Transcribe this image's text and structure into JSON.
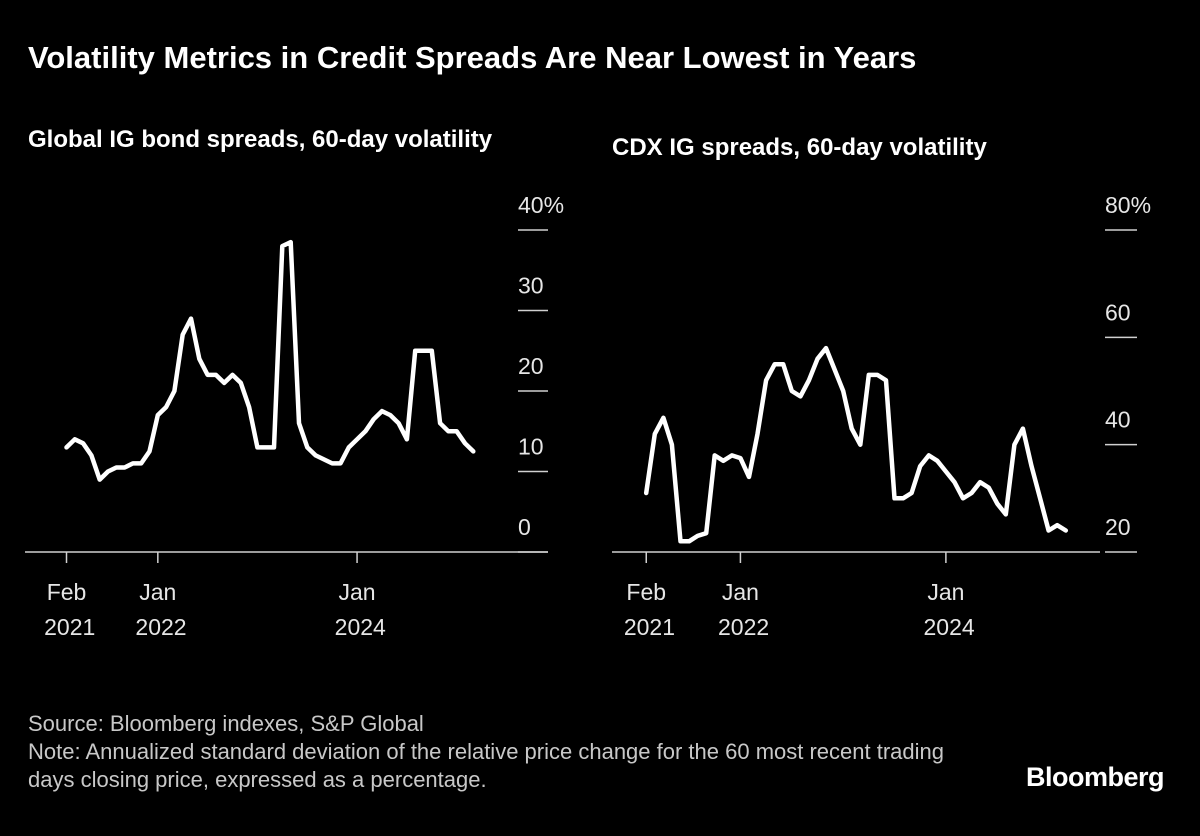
{
  "title": "Volatility Metrics in Credit Spreads Are Near Lowest in Years",
  "source": "Source: Bloomberg indexes, S&P Global",
  "note": "Note: Annualized standard deviation of the relative price change for the 60 most recent trading days closing price, expressed as a percentage.",
  "logo": "Bloomberg",
  "chart_data": [
    {
      "type": "line",
      "title": "Global IG bond spreads, 60-day volatility",
      "color": "#ffffff",
      "x": [
        "2021-02",
        "2021-03",
        "2021-04",
        "2021-05",
        "2021-06",
        "2021-07",
        "2021-08",
        "2021-09",
        "2021-10",
        "2021-11",
        "2021-12",
        "2022-01",
        "2022-02",
        "2022-03",
        "2022-04",
        "2022-05",
        "2022-06",
        "2022-07",
        "2022-08",
        "2022-09",
        "2022-10",
        "2022-11",
        "2022-12",
        "2023-01",
        "2023-02",
        "2023-03",
        "2023-04",
        "2023-05",
        "2023-06",
        "2023-07",
        "2023-08",
        "2023-09",
        "2023-10",
        "2023-11",
        "2023-12",
        "2024-01",
        "2024-02",
        "2024-03",
        "2024-04",
        "2024-05",
        "2024-06",
        "2024-07",
        "2024-08",
        "2024-09",
        "2024-10",
        "2024-11",
        "2024-12",
        "2025-01",
        "2025-02",
        "2025-03"
      ],
      "values": [
        13,
        14,
        13.5,
        12,
        9,
        10,
        10.5,
        10.5,
        11,
        11,
        12.5,
        17,
        18,
        20,
        27,
        29,
        24,
        22,
        22,
        21,
        22,
        21,
        18,
        13,
        13,
        13,
        38,
        38.5,
        16,
        13,
        12,
        11.5,
        11,
        11,
        13,
        14,
        15,
        16.5,
        17.5,
        17,
        16,
        14,
        25,
        25,
        25,
        16,
        15,
        15,
        13.5,
        12.5
      ],
      "xlim": [
        "2020-09",
        "2025-12"
      ],
      "xticks": [
        {
          "value": "2021-02",
          "label": "Feb 2021"
        },
        {
          "value": "2022-01",
          "label": "Jan 2022"
        },
        {
          "value": "2024-01",
          "label": "Jan 2024"
        }
      ],
      "ylim": [
        0,
        40
      ],
      "yticks": [
        0,
        10,
        20,
        30,
        {
          "value": 40,
          "label": "40%"
        }
      ]
    },
    {
      "type": "line",
      "title": "CDX IG spreads, 60-day volatility",
      "color": "#ffffff",
      "x": [
        "2021-02",
        "2021-03",
        "2021-04",
        "2021-05",
        "2021-06",
        "2021-07",
        "2021-08",
        "2021-09",
        "2021-10",
        "2021-11",
        "2021-12",
        "2022-01",
        "2022-02",
        "2022-03",
        "2022-04",
        "2022-05",
        "2022-06",
        "2022-07",
        "2022-08",
        "2022-09",
        "2022-10",
        "2022-11",
        "2022-12",
        "2023-01",
        "2023-02",
        "2023-03",
        "2023-04",
        "2023-05",
        "2023-06",
        "2023-07",
        "2023-08",
        "2023-09",
        "2023-10",
        "2023-11",
        "2023-12",
        "2024-01",
        "2024-02",
        "2024-03",
        "2024-04",
        "2024-05",
        "2024-06",
        "2024-07",
        "2024-08",
        "2024-09",
        "2024-10",
        "2024-11",
        "2024-12",
        "2025-01",
        "2025-02",
        "2025-03"
      ],
      "values": [
        31,
        42,
        45,
        40,
        22,
        22,
        23,
        23.5,
        38,
        37,
        38,
        37.5,
        34,
        42,
        52,
        55,
        55,
        50,
        49,
        52,
        56,
        58,
        54,
        50,
        43,
        40,
        53,
        53,
        52,
        30,
        30,
        31,
        36,
        38,
        37,
        35,
        33,
        30,
        31,
        33,
        32,
        29,
        27,
        40,
        43,
        36,
        30,
        24,
        25,
        24
      ],
      "xlim": [
        "2020-10",
        "2025-07"
      ],
      "xticks": [
        {
          "value": "2021-02",
          "label": "Feb 2021"
        },
        {
          "value": "2022-01",
          "label": "Jan 2022"
        },
        {
          "value": "2024-01",
          "label": "Jan 2024"
        }
      ],
      "ylim": [
        20,
        80
      ],
      "yticks": [
        20,
        40,
        60,
        {
          "value": 80,
          "label": "80%"
        }
      ]
    }
  ]
}
